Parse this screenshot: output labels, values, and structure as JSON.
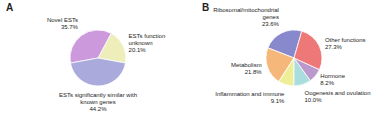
{
  "chart_data": [
    {
      "type": "pie",
      "title": "A",
      "categories": [
        "ESTs function\nunknown",
        "Novel ESTs",
        "ESTs significantly similar with\nknown genes"
      ],
      "values": [
        20.1,
        35.7,
        44.2
      ],
      "value_labels": [
        "20.1%",
        "35.7%",
        "44.2%"
      ],
      "colors": [
        "#eeeebb",
        "#cc99dd",
        "#aaaadd"
      ],
      "data_labels": true
    },
    {
      "type": "pie",
      "title": "B",
      "categories": [
        "Ribosomal/mitochondrial\ngenes",
        "Metabolism",
        "Inflammation and immune",
        "Oogenesis and ovulation",
        "Hormone",
        "Other functions"
      ],
      "values": [
        23.6,
        21.8,
        9.1,
        10.0,
        8.2,
        27.3
      ],
      "value_labels": [
        "23.6%",
        "21.8%",
        "9.1%",
        "10.0%",
        "8.2%",
        "27.3%"
      ],
      "colors": [
        "#8888cc",
        "#f5b87a",
        "#eeee99",
        "#aadddd",
        "#bb99cc",
        "#ee7777"
      ],
      "data_labels": true
    }
  ]
}
